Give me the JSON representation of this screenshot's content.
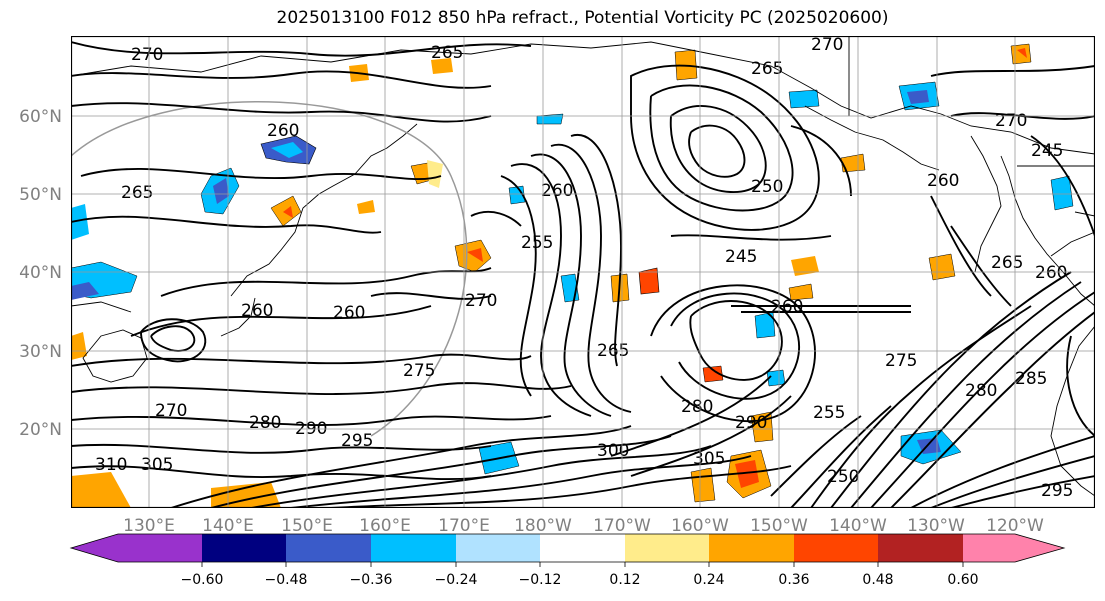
{
  "title": "2025013100 F012 850 hPa refract., Potential Vorticity PC (2025020600)",
  "lat_labels": [
    "60°N",
    "50°N",
    "40°N",
    "30°N",
    "20°N"
  ],
  "lon_labels": [
    "130°E",
    "140°E",
    "150°E",
    "160°E",
    "170°E",
    "180°W",
    "170°W",
    "160°W",
    "150°W",
    "140°W",
    "130°W",
    "120°W"
  ],
  "colorbar": {
    "colors": [
      "#9932cc",
      "#000080",
      "#3a5bc9",
      "#00bfff",
      "#b0e2ff",
      "#ffffff",
      "#ffec8b",
      "#ffa500",
      "#ff4500",
      "#b22222",
      "#ff82ab"
    ],
    "tick_labels": [
      "−0.60",
      "−0.48",
      "−0.36",
      "−0.24",
      "−0.12",
      "0.12",
      "0.24",
      "0.36",
      "0.48",
      "0.60"
    ]
  },
  "contour_labels": [
    "270",
    "265",
    "260",
    "265",
    "260",
    "260",
    "270",
    "270",
    "275",
    "280",
    "290",
    "295",
    "305",
    "310",
    "255",
    "260",
    "265",
    "250",
    "245",
    "260",
    "270",
    "265",
    "300",
    "305",
    "280",
    "290",
    "255",
    "250",
    "260",
    "265",
    "270",
    "245",
    "260",
    "275",
    "280",
    "285",
    "295"
  ]
}
